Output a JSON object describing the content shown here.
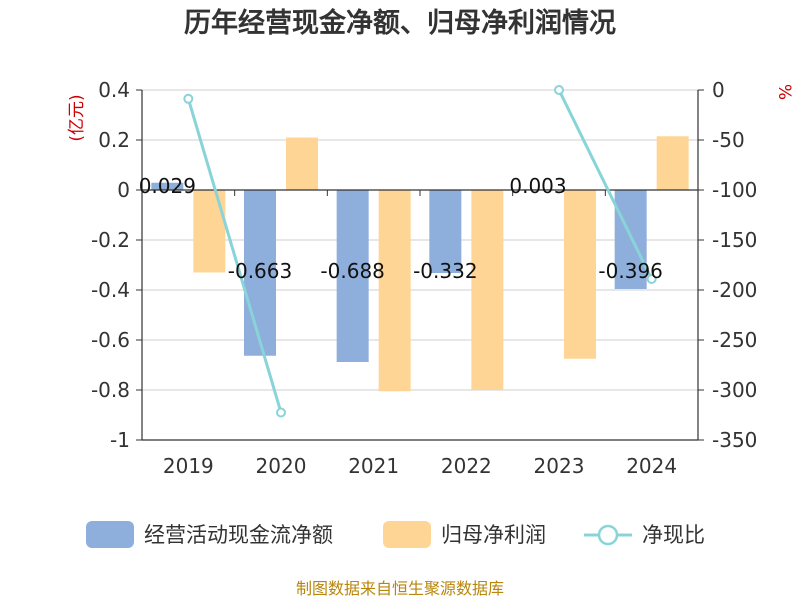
{
  "chart_data": {
    "type": "bar",
    "title": "历年经营现金净额、归母净利润情况",
    "categories": [
      "2019",
      "2020",
      "2021",
      "2022",
      "2023",
      "2024"
    ],
    "series": [
      {
        "name": "经营活动现金流净额",
        "type": "bar",
        "axis": "left",
        "color": "#8eaedc",
        "values": [
          0.029,
          -0.663,
          -0.688,
          -0.332,
          0.003,
          -0.396
        ],
        "labels": [
          "0.029",
          "-0.663",
          "-0.688",
          "-0.332",
          "0.003",
          "-0.396"
        ]
      },
      {
        "name": "归母净利润",
        "type": "bar",
        "axis": "left",
        "color": "#ffd596",
        "values": [
          -0.33,
          0.21,
          -0.805,
          -0.8,
          -0.675,
          0.215
        ]
      },
      {
        "name": "净现比",
        "type": "line",
        "axis": "right",
        "color": "#88d4d8",
        "values": [
          -8.8,
          -322.5,
          null,
          null,
          0,
          -189
        ]
      }
    ],
    "y_left": {
      "unit": "(亿元)",
      "ylim": [
        -1,
        0.4
      ],
      "ticks": [
        "0.4",
        "0.2",
        "0",
        "-0.2",
        "-0.4",
        "-0.6",
        "-0.8",
        "-1"
      ],
      "tick_values": [
        0.4,
        0.2,
        0,
        -0.2,
        -0.4,
        -0.6,
        -0.8,
        -1
      ]
    },
    "y_right": {
      "unit": "%",
      "ylim": [
        -350,
        0
      ],
      "ticks": [
        "0",
        "-50",
        "-100",
        "-150",
        "-200",
        "-250",
        "-300",
        "-350"
      ],
      "tick_values": [
        0,
        -50,
        -100,
        -150,
        -200,
        -250,
        -300,
        -350
      ]
    },
    "grid": true,
    "legend_position": "bottom"
  },
  "source": "制图数据来自恒生聚源数据库"
}
